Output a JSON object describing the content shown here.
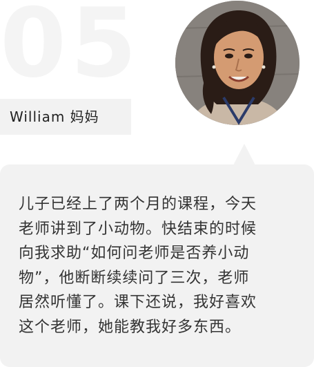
{
  "card": {
    "number": "05",
    "author_name": "William 妈妈",
    "testimonial_lines": [
      "儿子已经上了两个月的课程，今天",
      "老师讲到了小动物。快结束的时候",
      "向我求助“如何问老师是否养小动",
      "物”，他断断续续问了三次，老师",
      "居然听懂了。课下还说，我好喜欢",
      "这个老师，她能教我好多东西。"
    ]
  },
  "colors": {
    "background": "#ffffff",
    "panel": "#f2f2f2",
    "number": "#f4f4f4",
    "text": "#333333"
  }
}
